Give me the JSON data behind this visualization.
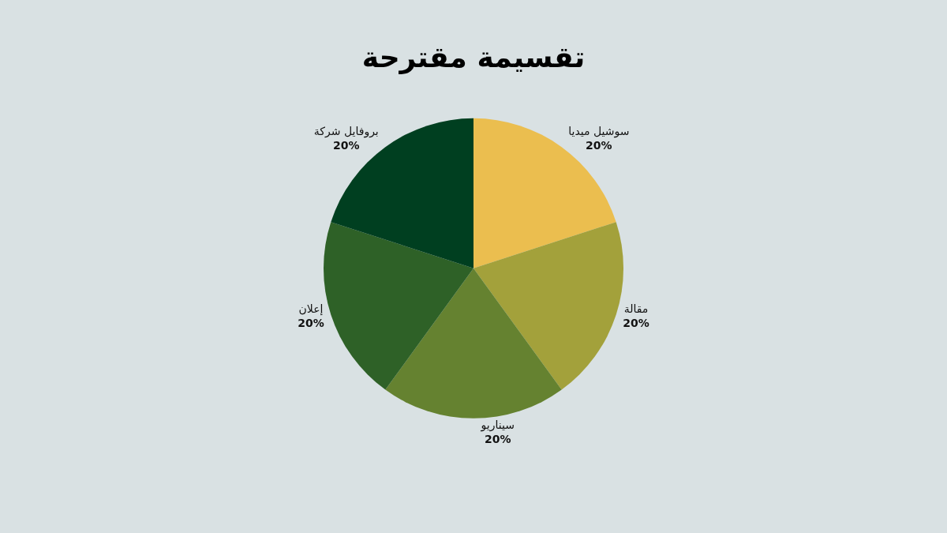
{
  "chart_data": {
    "type": "pie",
    "title": "تقسيمة مقترحة",
    "categories": [
      "سوشيل ميديا",
      "مقالة",
      "سيناريو",
      "إعلان",
      "بروفايل شركة"
    ],
    "values": [
      20,
      20,
      20,
      20,
      20
    ],
    "colors": [
      "#ebbe4f",
      "#a3a13b",
      "#658230",
      "#2e6127",
      "#003f20"
    ],
    "value_labels": [
      "20%",
      "20%",
      "20%",
      "20%",
      "20%"
    ],
    "legend": false
  }
}
